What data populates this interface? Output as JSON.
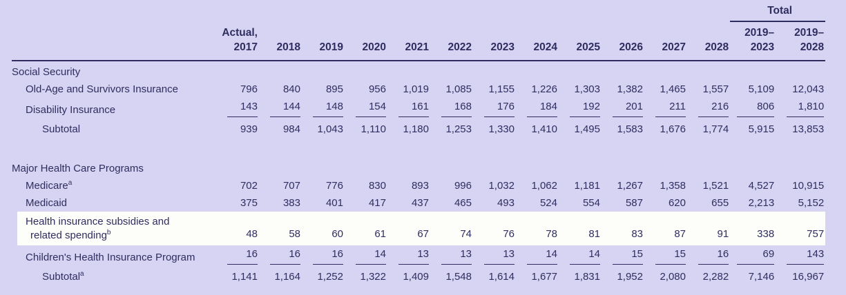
{
  "colors": {
    "background": "#d6d4f2",
    "ink": "#2f2d5f",
    "row_highlight": "#fdfdfa"
  },
  "table": {
    "total_label": "Total",
    "columns": [
      "Actual,\n2017",
      "2018",
      "2019",
      "2020",
      "2021",
      "2022",
      "2023",
      "2024",
      "2025",
      "2026",
      "2027",
      "2028",
      "2019–\n2023",
      "2019–\n2028"
    ],
    "rows": [
      {
        "type": "section",
        "label_lines": [
          "Social Security"
        ]
      },
      {
        "type": "data",
        "indent": 1,
        "label_lines": [
          "Old-Age and Survivors Insurance"
        ],
        "values": [
          "796",
          "840",
          "895",
          "956",
          "1,019",
          "1,085",
          "1,155",
          "1,226",
          "1,303",
          "1,382",
          "1,465",
          "1,557",
          "5,109",
          "12,043"
        ]
      },
      {
        "type": "data",
        "indent": 1,
        "underline": true,
        "label_lines": [
          "Disability Insurance"
        ],
        "values": [
          "143",
          "144",
          "148",
          "154",
          "161",
          "168",
          "176",
          "184",
          "192",
          "201",
          "211",
          "216",
          "806",
          "1,810"
        ]
      },
      {
        "type": "subtotal",
        "indent": 2,
        "label_lines": [
          "Subtotal"
        ],
        "values": [
          "939",
          "984",
          "1,043",
          "1,110",
          "1,180",
          "1,253",
          "1,330",
          "1,410",
          "1,495",
          "1,583",
          "1,676",
          "1,774",
          "5,915",
          "13,853"
        ]
      },
      {
        "type": "spacer"
      },
      {
        "type": "section",
        "label_lines": [
          "Major Health Care Programs"
        ]
      },
      {
        "type": "data",
        "indent": 1,
        "sup": "a",
        "label_lines": [
          "Medicare"
        ],
        "values": [
          "702",
          "707",
          "776",
          "830",
          "893",
          "996",
          "1,032",
          "1,062",
          "1,181",
          "1,267",
          "1,358",
          "1,521",
          "4,527",
          "10,915"
        ]
      },
      {
        "type": "data",
        "indent": 1,
        "label_lines": [
          "Medicaid"
        ],
        "values": [
          "375",
          "383",
          "401",
          "417",
          "437",
          "465",
          "493",
          "524",
          "554",
          "587",
          "620",
          "655",
          "2,213",
          "5,152"
        ]
      },
      {
        "type": "data",
        "indent": 1,
        "sup": "b",
        "highlight": true,
        "label_lines": [
          "Health insurance subsidies and",
          "related spending"
        ],
        "values": [
          "48",
          "58",
          "60",
          "61",
          "67",
          "74",
          "76",
          "78",
          "81",
          "83",
          "87",
          "91",
          "338",
          "757"
        ]
      },
      {
        "type": "data",
        "indent": 1,
        "underline": true,
        "label_lines": [
          "Children's Health Insurance Program"
        ],
        "values": [
          "16",
          "16",
          "16",
          "14",
          "13",
          "13",
          "13",
          "14",
          "14",
          "15",
          "15",
          "16",
          "69",
          "143"
        ]
      },
      {
        "type": "subtotal",
        "indent": 2,
        "sup": "a",
        "label_lines": [
          "Subtotal"
        ],
        "values": [
          "1,141",
          "1,164",
          "1,252",
          "1,322",
          "1,409",
          "1,548",
          "1,614",
          "1,677",
          "1,831",
          "1,952",
          "2,080",
          "2,282",
          "7,146",
          "16,967"
        ]
      }
    ]
  }
}
